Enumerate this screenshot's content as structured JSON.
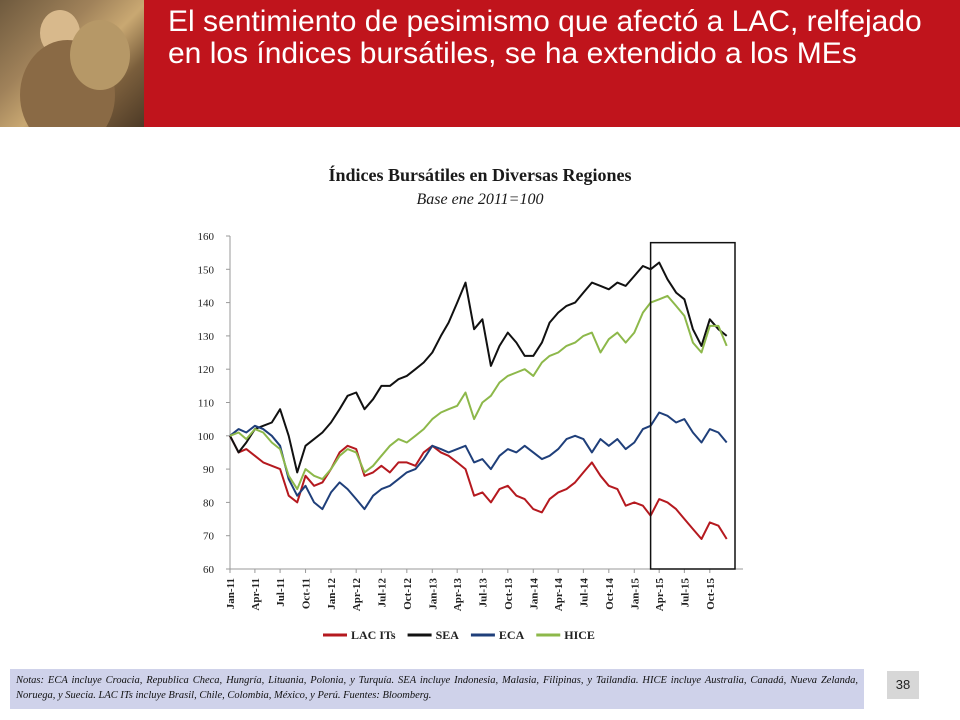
{
  "slide": {
    "title": "El sentimiento de pesimismo que afectó a LAC, relfejado en los índices bursátiles, se ha extendido a los MEs",
    "notes": "Notas: ECA incluye Croacia, Republica Checa, Hungría, Lituania, Polonia, y Turquía. SEA incluye Indonesia, Malasia, Filipinas, y Tailandia. HICE incluye Australia, Canadá, Nueva Zelanda, Noruega, y Suecia. LAC ITs incluye Brasil, Chile, Colombia, México, y Perú. Fuentes: Bloomberg.",
    "page_number": "38"
  },
  "chart_data": {
    "type": "line",
    "title": "Índices Bursátiles en Diversas Regiones",
    "subtitle": "Base ene 2011=100",
    "ylim": [
      60,
      160
    ],
    "y_ticks": [
      "60",
      "70",
      "80",
      "90",
      "100",
      "110",
      "120",
      "130",
      "140",
      "150",
      "160"
    ],
    "x_ticks": [
      "Jan-11",
      "Apr-11",
      "Jul-11",
      "Oct-11",
      "Jan-12",
      "Apr-12",
      "Jul-12",
      "Oct-12",
      "Jan-13",
      "Apr-13",
      "Jul-13",
      "Oct-13",
      "Jan-14",
      "Apr-14",
      "Jul-14",
      "Oct-14",
      "Jan-15",
      "Apr-15",
      "Jul-15",
      "Oct-15"
    ],
    "x_range": [
      "2011-01-01",
      "2015-12-31"
    ],
    "highlight_box": {
      "x_start": "2015-03-01",
      "x_end": "2015-12-31",
      "y_range": [
        60,
        158
      ]
    },
    "legend_position": "bottom",
    "series": [
      {
        "name": "LAC ITs",
        "color": "#b5191f",
        "points": [
          [
            "2011-01-01",
            100
          ],
          [
            "2011-02-01",
            95
          ],
          [
            "2011-03-01",
            96
          ],
          [
            "2011-04-01",
            94
          ],
          [
            "2011-05-01",
            92
          ],
          [
            "2011-06-01",
            91
          ],
          [
            "2011-07-01",
            90
          ],
          [
            "2011-08-01",
            82
          ],
          [
            "2011-09-01",
            80
          ],
          [
            "2011-10-01",
            88
          ],
          [
            "2011-11-01",
            85
          ],
          [
            "2011-12-01",
            86
          ],
          [
            "2012-01-01",
            90
          ],
          [
            "2012-02-01",
            95
          ],
          [
            "2012-03-01",
            97
          ],
          [
            "2012-04-01",
            96
          ],
          [
            "2012-05-01",
            88
          ],
          [
            "2012-06-01",
            89
          ],
          [
            "2012-07-01",
            91
          ],
          [
            "2012-08-01",
            89
          ],
          [
            "2012-09-01",
            92
          ],
          [
            "2012-10-01",
            92
          ],
          [
            "2012-11-01",
            91
          ],
          [
            "2012-12-01",
            95
          ],
          [
            "2013-01-01",
            97
          ],
          [
            "2013-02-01",
            95
          ],
          [
            "2013-03-01",
            94
          ],
          [
            "2013-04-01",
            92
          ],
          [
            "2013-05-01",
            90
          ],
          [
            "2013-06-01",
            82
          ],
          [
            "2013-07-01",
            83
          ],
          [
            "2013-08-01",
            80
          ],
          [
            "2013-09-01",
            84
          ],
          [
            "2013-10-01",
            85
          ],
          [
            "2013-11-01",
            82
          ],
          [
            "2013-12-01",
            81
          ],
          [
            "2014-01-01",
            78
          ],
          [
            "2014-02-01",
            77
          ],
          [
            "2014-03-01",
            81
          ],
          [
            "2014-04-01",
            83
          ],
          [
            "2014-05-01",
            84
          ],
          [
            "2014-06-01",
            86
          ],
          [
            "2014-07-01",
            89
          ],
          [
            "2014-08-01",
            92
          ],
          [
            "2014-09-01",
            88
          ],
          [
            "2014-10-01",
            85
          ],
          [
            "2014-11-01",
            84
          ],
          [
            "2014-12-01",
            79
          ],
          [
            "2015-01-01",
            80
          ],
          [
            "2015-02-01",
            79
          ],
          [
            "2015-03-01",
            76
          ],
          [
            "2015-04-01",
            81
          ],
          [
            "2015-05-01",
            80
          ],
          [
            "2015-06-01",
            78
          ],
          [
            "2015-07-01",
            75
          ],
          [
            "2015-08-01",
            72
          ],
          [
            "2015-09-01",
            69
          ],
          [
            "2015-10-01",
            74
          ],
          [
            "2015-11-01",
            73
          ],
          [
            "2015-12-01",
            69
          ]
        ]
      },
      {
        "name": "SEA",
        "color": "#111111",
        "points": [
          [
            "2011-01-01",
            100
          ],
          [
            "2011-02-01",
            95
          ],
          [
            "2011-03-01",
            98
          ],
          [
            "2011-04-01",
            102
          ],
          [
            "2011-05-01",
            103
          ],
          [
            "2011-06-01",
            104
          ],
          [
            "2011-07-01",
            108
          ],
          [
            "2011-08-01",
            100
          ],
          [
            "2011-09-01",
            89
          ],
          [
            "2011-10-01",
            97
          ],
          [
            "2011-11-01",
            99
          ],
          [
            "2011-12-01",
            101
          ],
          [
            "2012-01-01",
            104
          ],
          [
            "2012-02-01",
            108
          ],
          [
            "2012-03-01",
            112
          ],
          [
            "2012-04-01",
            113
          ],
          [
            "2012-05-01",
            108
          ],
          [
            "2012-06-01",
            111
          ],
          [
            "2012-07-01",
            115
          ],
          [
            "2012-08-01",
            115
          ],
          [
            "2012-09-01",
            117
          ],
          [
            "2012-10-01",
            118
          ],
          [
            "2012-11-01",
            120
          ],
          [
            "2012-12-01",
            122
          ],
          [
            "2013-01-01",
            125
          ],
          [
            "2013-02-01",
            130
          ],
          [
            "2013-03-01",
            134
          ],
          [
            "2013-04-01",
            140
          ],
          [
            "2013-05-01",
            146
          ],
          [
            "2013-06-01",
            132
          ],
          [
            "2013-07-01",
            135
          ],
          [
            "2013-08-01",
            121
          ],
          [
            "2013-09-01",
            127
          ],
          [
            "2013-10-01",
            131
          ],
          [
            "2013-11-01",
            128
          ],
          [
            "2013-12-01",
            124
          ],
          [
            "2014-01-01",
            124
          ],
          [
            "2014-02-01",
            128
          ],
          [
            "2014-03-01",
            134
          ],
          [
            "2014-04-01",
            137
          ],
          [
            "2014-05-01",
            139
          ],
          [
            "2014-06-01",
            140
          ],
          [
            "2014-07-01",
            143
          ],
          [
            "2014-08-01",
            146
          ],
          [
            "2014-09-01",
            145
          ],
          [
            "2014-10-01",
            144
          ],
          [
            "2014-11-01",
            146
          ],
          [
            "2014-12-01",
            145
          ],
          [
            "2015-01-01",
            148
          ],
          [
            "2015-02-01",
            151
          ],
          [
            "2015-03-01",
            150
          ],
          [
            "2015-04-01",
            152
          ],
          [
            "2015-05-01",
            147
          ],
          [
            "2015-06-01",
            143
          ],
          [
            "2015-07-01",
            141
          ],
          [
            "2015-08-01",
            132
          ],
          [
            "2015-09-01",
            127
          ],
          [
            "2015-10-01",
            135
          ],
          [
            "2015-11-01",
            132
          ],
          [
            "2015-12-01",
            130
          ]
        ]
      },
      {
        "name": "ECA",
        "color": "#1f3f7a",
        "points": [
          [
            "2011-01-01",
            100
          ],
          [
            "2011-02-01",
            102
          ],
          [
            "2011-03-01",
            101
          ],
          [
            "2011-04-01",
            103
          ],
          [
            "2011-05-01",
            102
          ],
          [
            "2011-06-01",
            100
          ],
          [
            "2011-07-01",
            97
          ],
          [
            "2011-08-01",
            87
          ],
          [
            "2011-09-01",
            82
          ],
          [
            "2011-10-01",
            85
          ],
          [
            "2011-11-01",
            80
          ],
          [
            "2011-12-01",
            78
          ],
          [
            "2012-01-01",
            83
          ],
          [
            "2012-02-01",
            86
          ],
          [
            "2012-03-01",
            84
          ],
          [
            "2012-04-01",
            81
          ],
          [
            "2012-05-01",
            78
          ],
          [
            "2012-06-01",
            82
          ],
          [
            "2012-07-01",
            84
          ],
          [
            "2012-08-01",
            85
          ],
          [
            "2012-09-01",
            87
          ],
          [
            "2012-10-01",
            89
          ],
          [
            "2012-11-01",
            90
          ],
          [
            "2012-12-01",
            93
          ],
          [
            "2013-01-01",
            97
          ],
          [
            "2013-02-01",
            96
          ],
          [
            "2013-03-01",
            95
          ],
          [
            "2013-04-01",
            96
          ],
          [
            "2013-05-01",
            97
          ],
          [
            "2013-06-01",
            92
          ],
          [
            "2013-07-01",
            93
          ],
          [
            "2013-08-01",
            90
          ],
          [
            "2013-09-01",
            94
          ],
          [
            "2013-10-01",
            96
          ],
          [
            "2013-11-01",
            95
          ],
          [
            "2013-12-01",
            97
          ],
          [
            "2014-01-01",
            95
          ],
          [
            "2014-02-01",
            93
          ],
          [
            "2014-03-01",
            94
          ],
          [
            "2014-04-01",
            96
          ],
          [
            "2014-05-01",
            99
          ],
          [
            "2014-06-01",
            100
          ],
          [
            "2014-07-01",
            99
          ],
          [
            "2014-08-01",
            95
          ],
          [
            "2014-09-01",
            99
          ],
          [
            "2014-10-01",
            97
          ],
          [
            "2014-11-01",
            99
          ],
          [
            "2014-12-01",
            96
          ],
          [
            "2015-01-01",
            98
          ],
          [
            "2015-02-01",
            102
          ],
          [
            "2015-03-01",
            103
          ],
          [
            "2015-04-01",
            107
          ],
          [
            "2015-05-01",
            106
          ],
          [
            "2015-06-01",
            104
          ],
          [
            "2015-07-01",
            105
          ],
          [
            "2015-08-01",
            101
          ],
          [
            "2015-09-01",
            98
          ],
          [
            "2015-10-01",
            102
          ],
          [
            "2015-11-01",
            101
          ],
          [
            "2015-12-01",
            98
          ]
        ]
      },
      {
        "name": "HICE",
        "color": "#8db84a",
        "points": [
          [
            "2011-01-01",
            100
          ],
          [
            "2011-02-01",
            101
          ],
          [
            "2011-03-01",
            99
          ],
          [
            "2011-04-01",
            102
          ],
          [
            "2011-05-01",
            101
          ],
          [
            "2011-06-01",
            98
          ],
          [
            "2011-07-01",
            96
          ],
          [
            "2011-08-01",
            88
          ],
          [
            "2011-09-01",
            84
          ],
          [
            "2011-10-01",
            90
          ],
          [
            "2011-11-01",
            88
          ],
          [
            "2011-12-01",
            87
          ],
          [
            "2012-01-01",
            90
          ],
          [
            "2012-02-01",
            94
          ],
          [
            "2012-03-01",
            96
          ],
          [
            "2012-04-01",
            95
          ],
          [
            "2012-05-01",
            89
          ],
          [
            "2012-06-01",
            91
          ],
          [
            "2012-07-01",
            94
          ],
          [
            "2012-08-01",
            97
          ],
          [
            "2012-09-01",
            99
          ],
          [
            "2012-10-01",
            98
          ],
          [
            "2012-11-01",
            100
          ],
          [
            "2012-12-01",
            102
          ],
          [
            "2013-01-01",
            105
          ],
          [
            "2013-02-01",
            107
          ],
          [
            "2013-03-01",
            108
          ],
          [
            "2013-04-01",
            109
          ],
          [
            "2013-05-01",
            113
          ],
          [
            "2013-06-01",
            105
          ],
          [
            "2013-07-01",
            110
          ],
          [
            "2013-08-01",
            112
          ],
          [
            "2013-09-01",
            116
          ],
          [
            "2013-10-01",
            118
          ],
          [
            "2013-11-01",
            119
          ],
          [
            "2013-12-01",
            120
          ],
          [
            "2014-01-01",
            118
          ],
          [
            "2014-02-01",
            122
          ],
          [
            "2014-03-01",
            124
          ],
          [
            "2014-04-01",
            125
          ],
          [
            "2014-05-01",
            127
          ],
          [
            "2014-06-01",
            128
          ],
          [
            "2014-07-01",
            130
          ],
          [
            "2014-08-01",
            131
          ],
          [
            "2014-09-01",
            125
          ],
          [
            "2014-10-01",
            129
          ],
          [
            "2014-11-01",
            131
          ],
          [
            "2014-12-01",
            128
          ],
          [
            "2015-01-01",
            131
          ],
          [
            "2015-02-01",
            137
          ],
          [
            "2015-03-01",
            140
          ],
          [
            "2015-04-01",
            141
          ],
          [
            "2015-05-01",
            142
          ],
          [
            "2015-06-01",
            139
          ],
          [
            "2015-07-01",
            136
          ],
          [
            "2015-08-01",
            128
          ],
          [
            "2015-09-01",
            125
          ],
          [
            "2015-10-01",
            133
          ],
          [
            "2015-11-01",
            133
          ],
          [
            "2015-12-01",
            127
          ]
        ]
      }
    ]
  }
}
